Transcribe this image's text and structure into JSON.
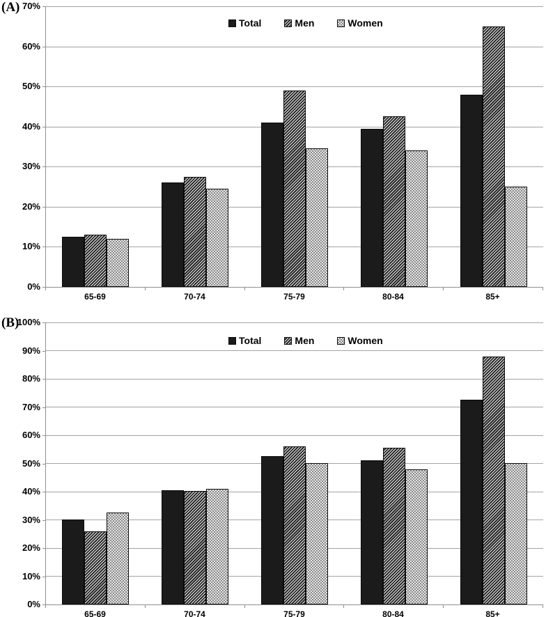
{
  "figure": {
    "background": "#ffffff",
    "grid_color": "#a3a3a3",
    "axis_color": "#8f8f8f",
    "bar_colors": {
      "total": "#1b1b1b",
      "men_pattern": "dark-diagonal-hatch",
      "women_pattern": "light-dot-checker"
    }
  },
  "chart_data": [
    {
      "type": "bar",
      "panel_label": "(A)",
      "title": "",
      "xlabel": "",
      "ylabel": "",
      "categories": [
        "65-69",
        "70-74",
        "75-79",
        "80-84",
        "85+"
      ],
      "series": [
        {
          "name": "Total",
          "values": [
            12.5,
            26,
            41,
            39.5,
            48
          ]
        },
        {
          "name": "Men",
          "values": [
            13,
            27.5,
            49,
            42.5,
            65
          ]
        },
        {
          "name": "Women",
          "values": [
            12,
            24.5,
            34.5,
            34,
            25
          ]
        }
      ],
      "ylim": [
        0,
        70
      ],
      "ytick_step": 10,
      "ytick_labels": [
        "0%",
        "10%",
        "20%",
        "30%",
        "40%",
        "50%",
        "60%",
        "70%"
      ],
      "grid": true,
      "legend_position": "top-center",
      "legend_entries": [
        "Total",
        "Men",
        "Women"
      ]
    },
    {
      "type": "bar",
      "panel_label": "(B)",
      "title": "",
      "xlabel": "",
      "ylabel": "",
      "categories": [
        "65-69",
        "70-74",
        "75-79",
        "80-84",
        "85+"
      ],
      "series": [
        {
          "name": "Total",
          "values": [
            30,
            40.5,
            52.5,
            51,
            72.5
          ]
        },
        {
          "name": "Men",
          "values": [
            26,
            40.3,
            56,
            55.5,
            88
          ]
        },
        {
          "name": "Women",
          "values": [
            32.5,
            41,
            50,
            48,
            50
          ]
        }
      ],
      "ylim": [
        0,
        100
      ],
      "ytick_step": 10,
      "ytick_labels": [
        "0%",
        "10%",
        "20%",
        "30%",
        "40%",
        "50%",
        "60%",
        "70%",
        "80%",
        "90%",
        "100%"
      ],
      "grid": true,
      "legend_position": "top-center",
      "legend_entries": [
        "Total",
        "Men",
        "Women"
      ]
    }
  ]
}
